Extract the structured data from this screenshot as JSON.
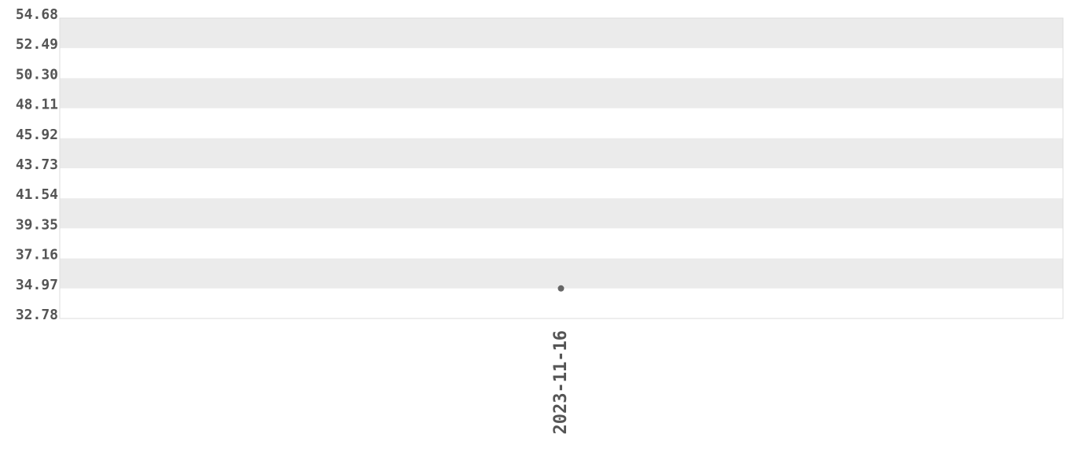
{
  "chart_data": {
    "type": "scatter",
    "title": "",
    "xlabel": "",
    "ylabel": "",
    "x_ticks": [
      "2023-11-16"
    ],
    "y_ticks": [
      "54.68",
      "52.49",
      "50.30",
      "48.11",
      "45.92",
      "43.73",
      "41.54",
      "39.35",
      "37.16",
      "34.97",
      "32.78"
    ],
    "ylim": [
      32.78,
      54.68
    ],
    "grid": "alternating horizontal bands",
    "points": [
      {
        "x": "2023-11-16",
        "y": 34.97
      }
    ],
    "colors": {
      "point": "#666666",
      "band": "#ebebeb",
      "border": "#dddddd",
      "text": "#555555"
    }
  }
}
